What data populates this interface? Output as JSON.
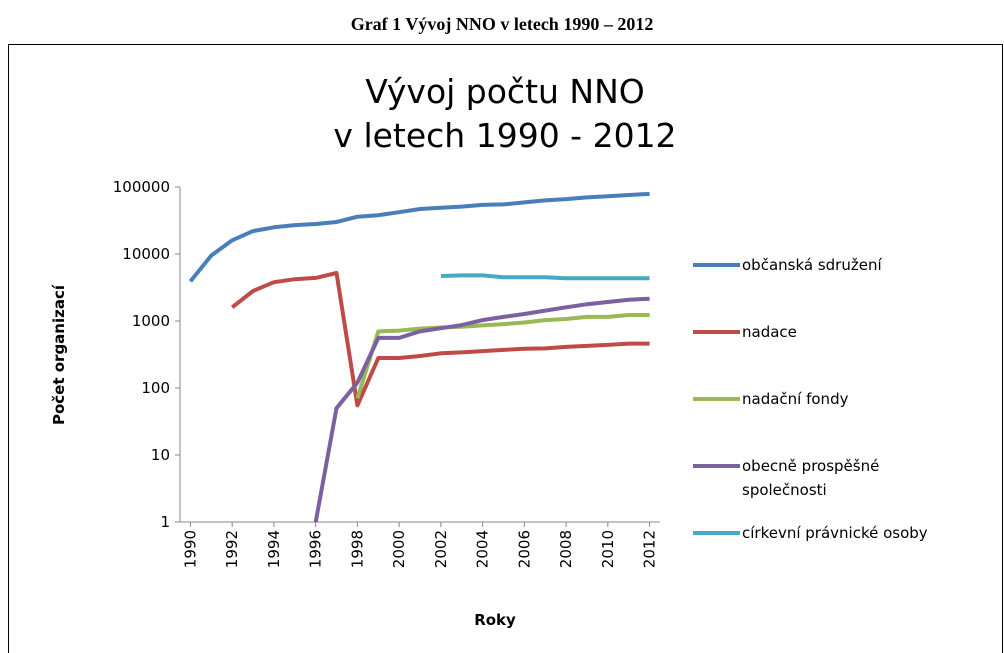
{
  "chart_data": {
    "type": "line",
    "caption": "Graf 1 Vývoj NNO v letech 1990 – 2012",
    "title": "Vývoj počtu NNO\nv letech 1990 - 2012",
    "xlabel": "Roky",
    "ylabel": "Počet organizací",
    "x": [
      1990,
      1991,
      1992,
      1993,
      1994,
      1995,
      1996,
      1997,
      1998,
      1999,
      2000,
      2001,
      2002,
      2003,
      2004,
      2005,
      2006,
      2007,
      2008,
      2009,
      2010,
      2011,
      2012
    ],
    "series": [
      {
        "name": "občanská sdružení",
        "color": "#4a7ebb",
        "values": [
          3900,
          9500,
          16000,
          22000,
          25000,
          27000,
          28000,
          30000,
          36000,
          38000,
          42000,
          47000,
          49000,
          51000,
          54000,
          55000,
          59000,
          63000,
          66000,
          70000,
          73000,
          76000,
          79000
        ]
      },
      {
        "name": "nadace",
        "color": "#be4b48",
        "values": [
          null,
          null,
          1600,
          2800,
          3800,
          4200,
          4400,
          5200,
          55,
          280,
          280,
          300,
          330,
          340,
          355,
          370,
          385,
          390,
          410,
          425,
          440,
          460,
          460
        ]
      },
      {
        "name": "nadační fondy",
        "color": "#98b954",
        "values": [
          null,
          null,
          null,
          null,
          null,
          null,
          null,
          null,
          70,
          700,
          720,
          770,
          800,
          820,
          860,
          900,
          950,
          1030,
          1070,
          1150,
          1150,
          1230,
          1230
        ]
      },
      {
        "name": "obecně prospěšné společnosti",
        "color": "#7d60a0",
        "values": [
          null,
          null,
          null,
          null,
          null,
          null,
          1,
          50,
          120,
          560,
          560,
          700,
          780,
          870,
          1030,
          1150,
          1270,
          1430,
          1600,
          1780,
          1920,
          2080,
          2150
        ]
      },
      {
        "name": "církevní právnické osoby",
        "color": "#46aac5",
        "values": [
          null,
          null,
          null,
          null,
          null,
          null,
          null,
          null,
          null,
          null,
          null,
          null,
          4700,
          4800,
          4800,
          4500,
          4500,
          4500,
          4350,
          4350,
          4350,
          4350,
          4350
        ]
      }
    ],
    "xlim": [
      1989.5,
      2012.5
    ],
    "xticks": [
      1990,
      1992,
      1994,
      1996,
      1998,
      2000,
      2002,
      2004,
      2006,
      2008,
      2010,
      2012
    ],
    "ylim": [
      1,
      100000
    ],
    "yticks": [
      1,
      10,
      100,
      1000,
      10000,
      100000
    ],
    "log_y": true,
    "grid": false,
    "legend": "right"
  }
}
